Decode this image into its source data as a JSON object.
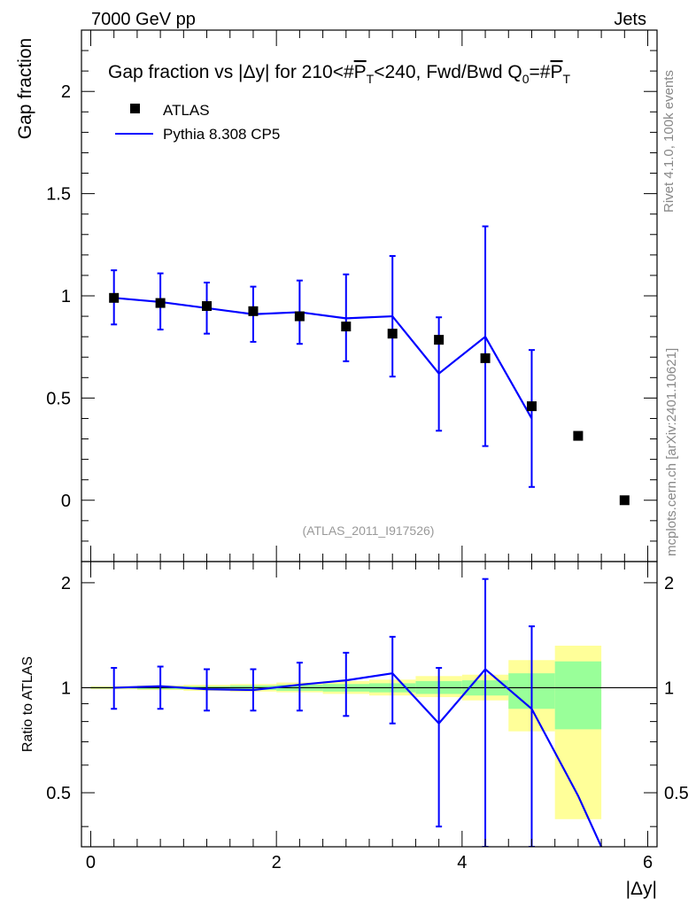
{
  "header": {
    "energy": "7000 GeV pp",
    "process": "Jets"
  },
  "side": {
    "rivet": "Rivet 4.1.0,  100k events",
    "source": "mcplots.cern.ch [arXiv:2401.10621]"
  },
  "chart_data": [
    {
      "type": "scatter",
      "panel": "main",
      "title": "Gap fraction vs |Δy| for 210<#P̄T<240, Fwd/Bwd Q0=#P̄T",
      "title_parts": {
        "a": "Gap fraction vs |Δy| for 210<#",
        "p1": "P",
        "t1": "T",
        "b": "<240, Fwd/Bwd Q",
        "q": "0",
        "c": "=#",
        "p2": "P",
        "t2": "T"
      },
      "ylabel": "Gap fraction",
      "xlabel": "|Δy|",
      "xlim": [
        -0.1,
        6.1
      ],
      "ylim": [
        -0.3,
        2.3
      ],
      "y_ticks": [
        0,
        0.5,
        1,
        1.5,
        2
      ],
      "y_tick_labels": [
        "0",
        "0.5",
        "1",
        "1.5",
        "2"
      ],
      "watermark": "(ATLAS_2011_I917526)",
      "legend": [
        {
          "label": "ATLAS",
          "kind": "marker",
          "color": "#000000"
        },
        {
          "label": "Pythia 8.308 CP5",
          "kind": "line",
          "color": "#0000ff"
        }
      ],
      "atlas": {
        "x": [
          0.25,
          0.75,
          1.25,
          1.75,
          2.25,
          2.75,
          3.25,
          3.75,
          4.25,
          4.75,
          5.25,
          5.75
        ],
        "y": [
          0.99,
          0.965,
          0.95,
          0.925,
          0.9,
          0.85,
          0.815,
          0.785,
          0.695,
          0.46,
          0.315,
          0.0
        ]
      },
      "pythia": {
        "x": [
          0.25,
          0.75,
          1.25,
          1.75,
          2.25,
          2.75,
          3.25,
          3.75,
          4.25,
          4.75
        ],
        "y": [
          0.99,
          0.97,
          0.94,
          0.91,
          0.92,
          0.89,
          0.9,
          0.62,
          0.8,
          0.4
        ],
        "err_lo": [
          0.86,
          0.835,
          0.815,
          0.775,
          0.765,
          0.68,
          0.605,
          0.34,
          0.265,
          0.065
        ],
        "err_hi": [
          1.125,
          1.11,
          1.065,
          1.045,
          1.075,
          1.105,
          1.195,
          0.895,
          1.34,
          0.735
        ]
      }
    },
    {
      "type": "line",
      "panel": "ratio",
      "ylabel": "Ratio to ATLAS",
      "xlabel": "|Δy|",
      "xlim": [
        -0.1,
        6.1
      ],
      "ylim": [
        0.35,
        2.3
      ],
      "x_ticks": [
        0,
        2,
        4,
        6
      ],
      "x_tick_labels": [
        "0",
        "2",
        "4",
        "6"
      ],
      "y_ticks": [
        0.5,
        1,
        2
      ],
      "y_tick_labels": [
        "0.5",
        "1",
        "2"
      ],
      "bin_edges": [
        0,
        0.5,
        1,
        1.5,
        2,
        2.5,
        3,
        3.5,
        4,
        4.5,
        5,
        5.5
      ],
      "yellow_band": {
        "lo": [
          0.99,
          0.985,
          0.98,
          0.975,
          0.97,
          0.96,
          0.95,
          0.94,
          0.92,
          0.75,
          0.42
        ],
        "hi": [
          1.01,
          1.015,
          1.02,
          1.025,
          1.035,
          1.045,
          1.055,
          1.08,
          1.09,
          1.2,
          1.32
        ]
      },
      "green_band": {
        "lo": [
          0.995,
          0.99,
          0.99,
          0.985,
          0.98,
          0.975,
          0.97,
          0.96,
          0.95,
          0.87,
          0.76
        ],
        "hi": [
          1.005,
          1.01,
          1.01,
          1.015,
          1.02,
          1.025,
          1.03,
          1.045,
          1.05,
          1.1,
          1.19
        ]
      },
      "pythia": {
        "x": [
          0.25,
          0.75,
          1.25,
          1.75,
          2.25,
          2.75,
          3.25,
          3.75,
          4.25,
          4.75,
          5.25,
          5.5
        ],
        "y": [
          1.0,
          1.01,
          0.99,
          0.985,
          1.02,
          1.05,
          1.1,
          0.79,
          1.13,
          0.87,
          0.49,
          0.35
        ],
        "err_x": [
          0.25,
          0.75,
          1.25,
          1.75,
          2.25,
          2.75,
          3.25,
          3.75,
          4.25,
          4.75
        ],
        "err_lo": [
          0.87,
          0.87,
          0.86,
          0.86,
          0.86,
          0.83,
          0.79,
          0.4,
          0.35,
          0.35
        ],
        "err_hi": [
          1.14,
          1.15,
          1.13,
          1.13,
          1.18,
          1.26,
          1.4,
          1.14,
          2.05,
          1.5
        ]
      }
    }
  ]
}
